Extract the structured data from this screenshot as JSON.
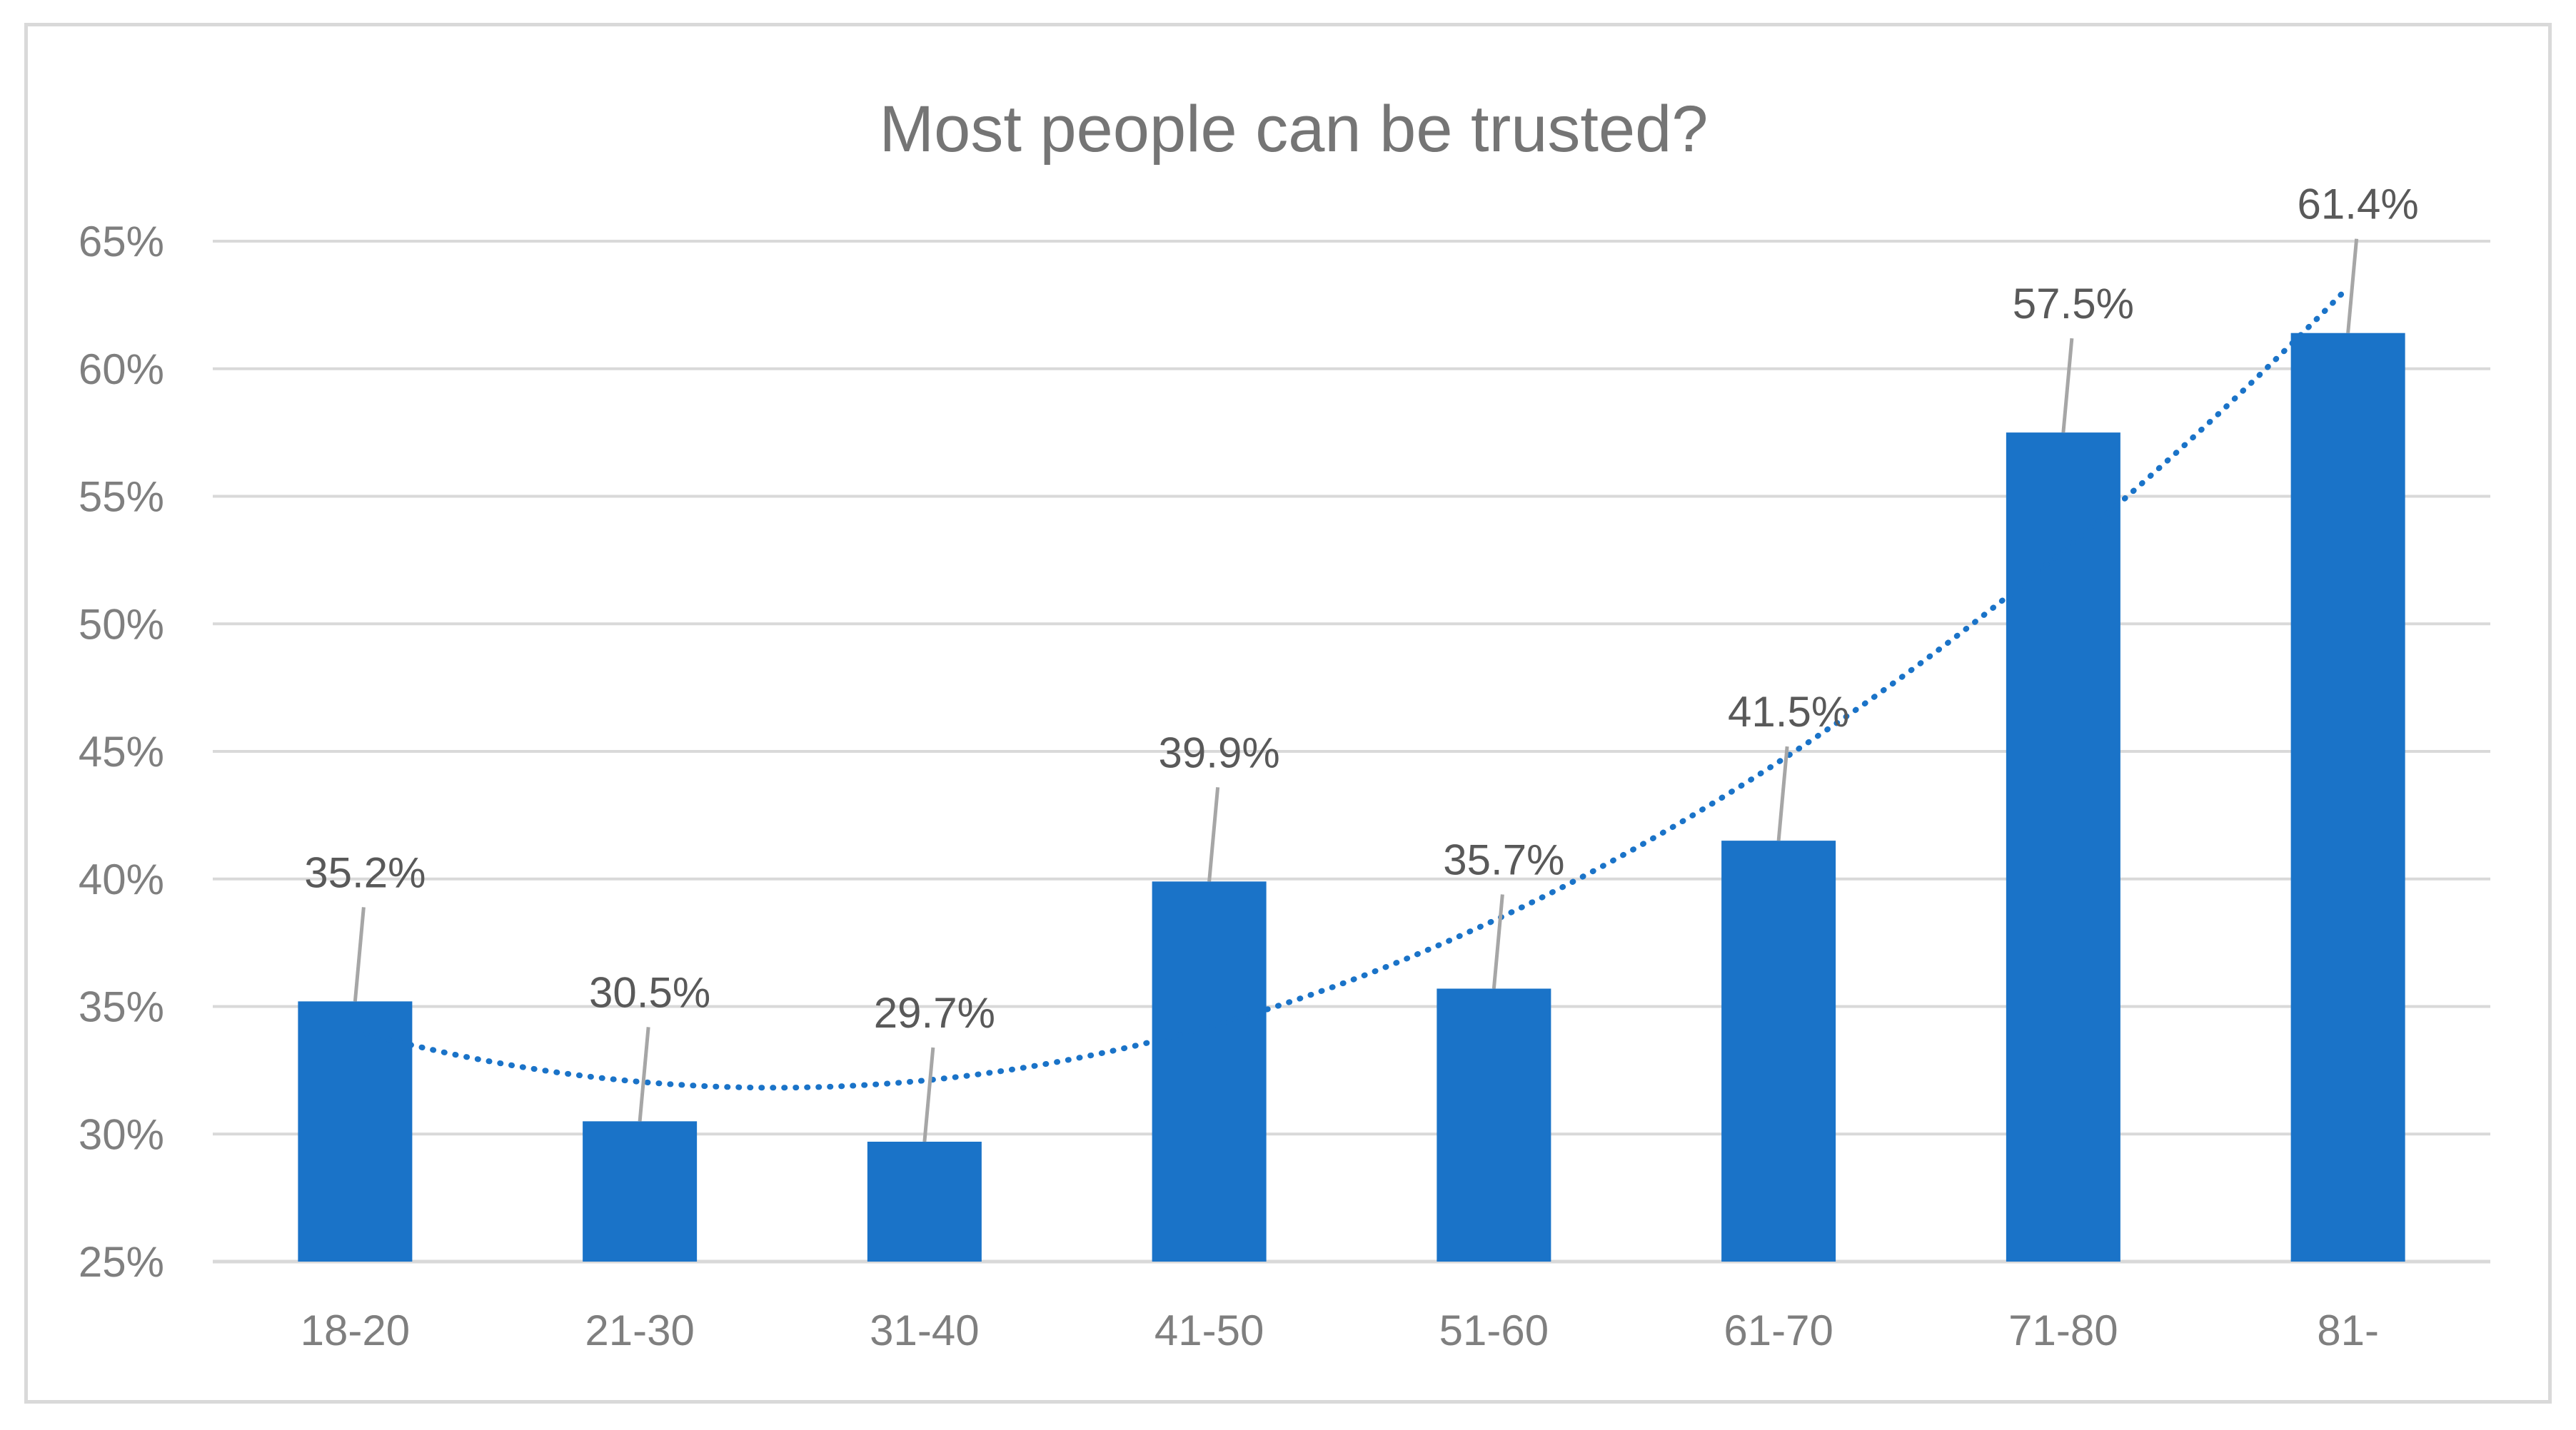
{
  "chart_data": {
    "type": "bar",
    "title": "Most people can be trusted?",
    "categories": [
      "18-20",
      "21-30",
      "31-40",
      "41-50",
      "51-60",
      "61-70",
      "71-80",
      "81-"
    ],
    "values": [
      35.2,
      30.5,
      29.7,
      39.9,
      35.7,
      41.5,
      57.5,
      61.4
    ],
    "data_labels": [
      "35.2%",
      "30.5%",
      "29.7%",
      "39.9%",
      "35.7%",
      "41.5%",
      "57.5%",
      "61.4%"
    ],
    "ylim": [
      25,
      65
    ],
    "yticks": [
      25,
      30,
      35,
      40,
      45,
      50,
      55,
      60,
      65
    ],
    "ytick_labels": [
      "25%",
      "30%",
      "35%",
      "40%",
      "45%",
      "50%",
      "55%",
      "60%",
      "65%"
    ],
    "xlabel": "",
    "ylabel": "",
    "grid": true,
    "legend": "none",
    "trendline": {
      "type": "polynomial",
      "style": "dotted"
    },
    "colors": {
      "bar": "#1a73c8",
      "trendline": "#1a73c8",
      "grid": "#d9d9d9",
      "text": "#7f7f7f"
    }
  }
}
